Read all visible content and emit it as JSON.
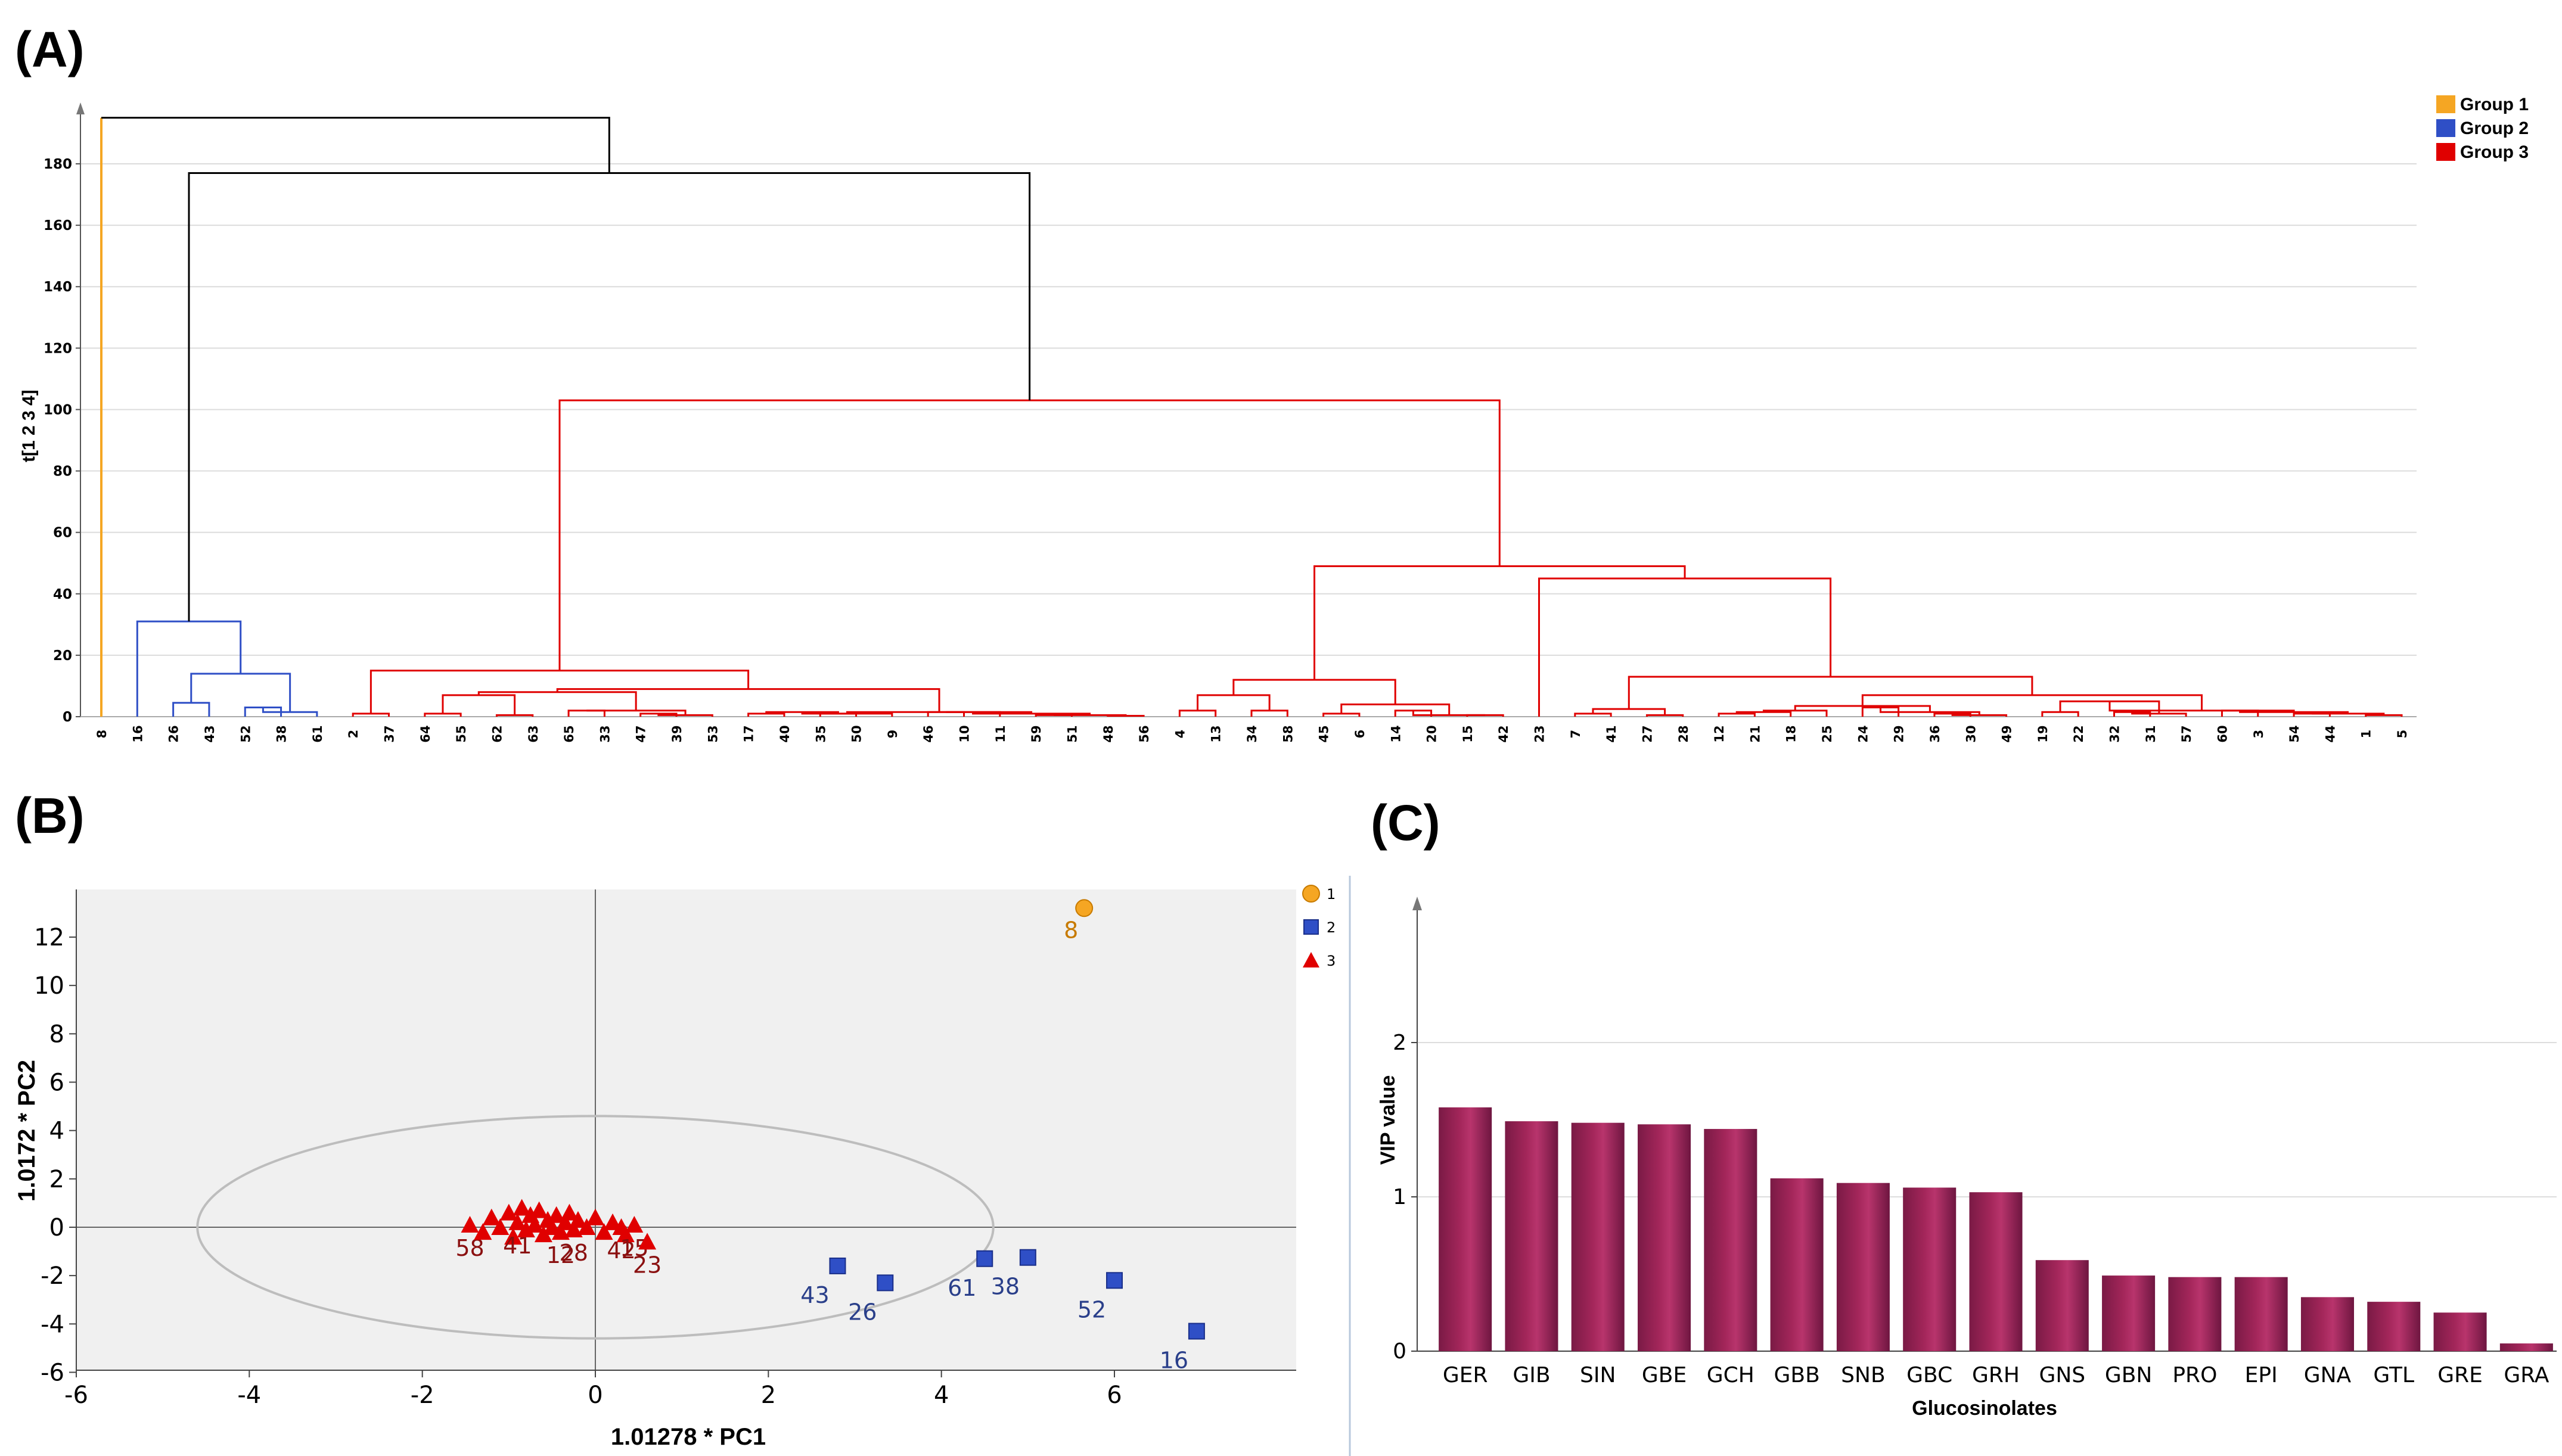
{
  "panels": {
    "a": "(A)",
    "b": "(B)",
    "c": "(C)"
  },
  "colors": {
    "group1": "#f5a623",
    "group2": "#2f4fc6",
    "group3": "#e00000",
    "root": "#000000",
    "bar": "#a3265a"
  },
  "chart_data": [
    {
      "type": "dendrogram",
      "ylabel": "t[1 2 3 4]",
      "ylim": [
        0,
        195
      ],
      "yticks": [
        0,
        20,
        40,
        60,
        80,
        100,
        120,
        140,
        160,
        180
      ],
      "grid": true,
      "legend_position": "top-right",
      "legend": [
        {
          "name": "Group 1",
          "color_key": "group1"
        },
        {
          "name": "Group 2",
          "color_key": "group2"
        },
        {
          "name": "Group 3",
          "color_key": "group3"
        }
      ],
      "leaves": [
        "8",
        "16",
        "26",
        "43",
        "52",
        "38",
        "61",
        "2",
        "37",
        "64",
        "55",
        "62",
        "63",
        "65",
        "33",
        "47",
        "39",
        "53",
        "17",
        "40",
        "35",
        "50",
        "9",
        "46",
        "10",
        "11",
        "59",
        "51",
        "48",
        "56",
        "4",
        "13",
        "34",
        "58",
        "45",
        "6",
        "14",
        "20",
        "15",
        "42",
        "23",
        "7",
        "41",
        "27",
        "28",
        "12",
        "21",
        "18",
        "25",
        "24",
        "29",
        "36",
        "30",
        "49",
        "19",
        "22",
        "32",
        "31",
        "57",
        "60",
        "3",
        "54",
        "44",
        "1",
        "5"
      ],
      "merge_heights": {
        "root": 195,
        "group2_group3": 177,
        "group2_top": 31,
        "group2_26_43_52_38_61": 14,
        "group3_top": 103,
        "group3_left": 15,
        "group3_right": 49,
        "group3_right_a": 12,
        "group3_right_b": 45,
        "group3_right_b2": 13
      }
    },
    {
      "type": "scatter",
      "xlabel": "1.01278 * PC1",
      "ylabel": "1.0172 * PC2",
      "xlim": [
        -6,
        8
      ],
      "ylim": [
        -6,
        14
      ],
      "xticks": [
        -6,
        -4,
        -2,
        0,
        2,
        4,
        6
      ],
      "yticks": [
        -6,
        -4,
        -2,
        0,
        2,
        4,
        6,
        8,
        10,
        12
      ],
      "grid": false,
      "legend_position": "top-right",
      "legend": [
        "1",
        "2",
        "3"
      ],
      "ellipse": {
        "center": [
          0,
          0
        ],
        "radius_x": 4.6,
        "radius_y": 4.6
      },
      "series": [
        {
          "name": "1",
          "marker": "circle",
          "color_key": "group1",
          "points": [
            {
              "label": "8",
              "x": 5.65,
              "y": 13.2
            }
          ]
        },
        {
          "name": "2",
          "marker": "square",
          "color_key": "group2",
          "points": [
            {
              "label": "43",
              "x": 2.8,
              "y": -1.6
            },
            {
              "label": "26",
              "x": 3.35,
              "y": -2.3
            },
            {
              "label": "61",
              "x": 4.5,
              "y": -1.3
            },
            {
              "label": "38",
              "x": 5.0,
              "y": -1.25
            },
            {
              "label": "52",
              "x": 6.0,
              "y": -2.2
            },
            {
              "label": "16",
              "x": 6.95,
              "y": -4.3
            }
          ]
        },
        {
          "name": "3",
          "marker": "triangle",
          "color_key": "group3",
          "points": [
            {
              "label": "58",
              "x": -1.45,
              "y": 0.1
            },
            {
              "label": "",
              "x": -1.3,
              "y": -0.2
            },
            {
              "label": "",
              "x": -1.2,
              "y": 0.4
            },
            {
              "label": "",
              "x": -1.1,
              "y": 0.0
            },
            {
              "label": "",
              "x": -1.0,
              "y": 0.6
            },
            {
              "label": "",
              "x": -0.95,
              "y": -0.4
            },
            {
              "label": "41",
              "x": -0.9,
              "y": 0.2
            },
            {
              "label": "",
              "x": -0.85,
              "y": 0.8
            },
            {
              "label": "",
              "x": -0.8,
              "y": -0.1
            },
            {
              "label": "",
              "x": -0.75,
              "y": 0.5
            },
            {
              "label": "",
              "x": -0.7,
              "y": 0.1
            },
            {
              "label": "",
              "x": -0.65,
              "y": 0.7
            },
            {
              "label": "",
              "x": -0.6,
              "y": -0.3
            },
            {
              "label": "",
              "x": -0.55,
              "y": 0.3
            },
            {
              "label": "",
              "x": -0.5,
              "y": 0.0
            },
            {
              "label": "",
              "x": -0.45,
              "y": 0.5
            },
            {
              "label": "12",
              "x": -0.4,
              "y": -0.2
            },
            {
              "label": "",
              "x": -0.35,
              "y": 0.2
            },
            {
              "label": "",
              "x": -0.3,
              "y": 0.6
            },
            {
              "label": "28",
              "x": -0.25,
              "y": -0.1
            },
            {
              "label": "",
              "x": -0.2,
              "y": 0.3
            },
            {
              "label": "",
              "x": -0.1,
              "y": 0.0
            },
            {
              "label": "",
              "x": 0.0,
              "y": 0.4
            },
            {
              "label": "",
              "x": 0.1,
              "y": -0.2
            },
            {
              "label": "",
              "x": 0.2,
              "y": 0.2
            },
            {
              "label": "42",
              "x": 0.3,
              "y": 0.0
            },
            {
              "label": "",
              "x": 0.35,
              "y": -0.3
            },
            {
              "label": "15",
              "x": 0.45,
              "y": 0.1
            },
            {
              "label": "23",
              "x": 0.6,
              "y": -0.6
            }
          ]
        }
      ]
    },
    {
      "type": "bar",
      "xlabel": "Glucosinolates",
      "ylabel": "VIP value",
      "ylim": [
        0,
        2.5
      ],
      "yticks": [
        0,
        1,
        2
      ],
      "grid": true,
      "categories": [
        "GER",
        "GIB",
        "SIN",
        "GBE",
        "GCH",
        "GBB",
        "SNB",
        "GBC",
        "GRH",
        "GNS",
        "GBN",
        "PRO",
        "EPI",
        "GNA",
        "GTL",
        "GRE",
        "GRA"
      ],
      "values": [
        1.58,
        1.49,
        1.48,
        1.47,
        1.44,
        1.12,
        1.09,
        1.06,
        1.03,
        0.59,
        0.49,
        0.48,
        0.48,
        0.35,
        0.32,
        0.25,
        0.05
      ]
    }
  ]
}
